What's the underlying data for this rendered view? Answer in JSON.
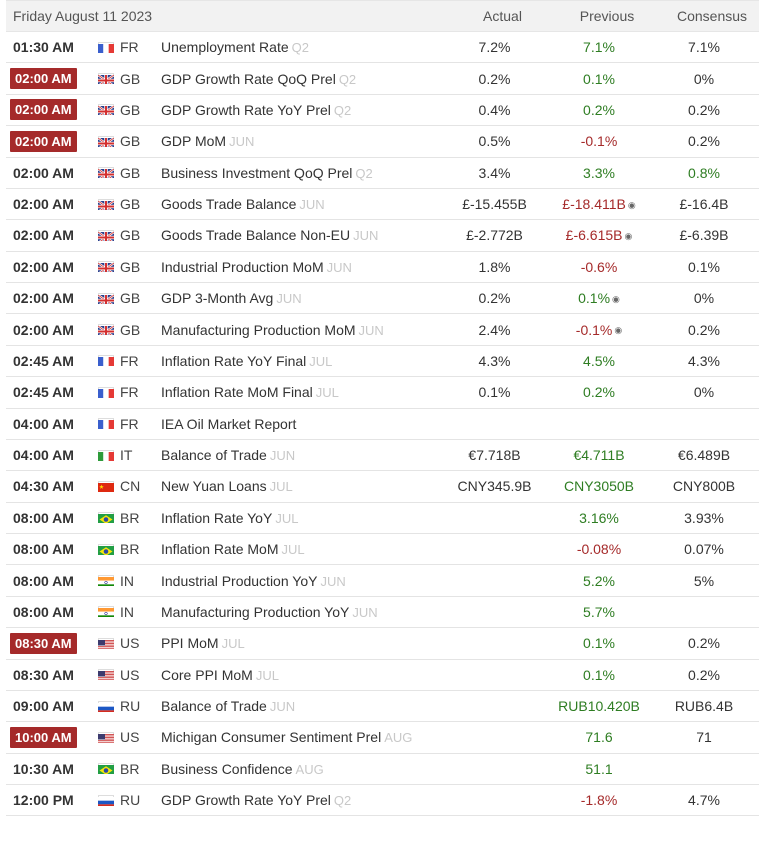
{
  "header": {
    "date": "Friday August 11 2023",
    "actual": "Actual",
    "previous": "Previous",
    "consensus": "Consensus"
  },
  "rows": [
    {
      "time": "01:30 AM",
      "time_highlight": false,
      "country": "FR",
      "flag": "fr",
      "event": "Unemployment Rate",
      "ref": "Q2",
      "actual": "7.2%",
      "previous": "7.1%",
      "previous_color": "pos",
      "previous_revised": false,
      "consensus": "7.1%",
      "consensus_color": "neu"
    },
    {
      "time": "02:00 AM",
      "time_highlight": true,
      "country": "GB",
      "flag": "gb",
      "event": "GDP Growth Rate QoQ Prel",
      "ref": "Q2",
      "actual": "0.2%",
      "previous": "0.1%",
      "previous_color": "pos",
      "previous_revised": false,
      "consensus": "0%",
      "consensus_color": "neu"
    },
    {
      "time": "02:00 AM",
      "time_highlight": true,
      "country": "GB",
      "flag": "gb",
      "event": "GDP Growth Rate YoY Prel",
      "ref": "Q2",
      "actual": "0.4%",
      "previous": "0.2%",
      "previous_color": "pos",
      "previous_revised": false,
      "consensus": "0.2%",
      "consensus_color": "neu"
    },
    {
      "time": "02:00 AM",
      "time_highlight": true,
      "country": "GB",
      "flag": "gb",
      "event": "GDP MoM",
      "ref": "JUN",
      "actual": "0.5%",
      "previous": "-0.1%",
      "previous_color": "neg",
      "previous_revised": false,
      "consensus": "0.2%",
      "consensus_color": "neu"
    },
    {
      "time": "02:00 AM",
      "time_highlight": false,
      "country": "GB",
      "flag": "gb",
      "event": "Business Investment QoQ Prel",
      "ref": "Q2",
      "actual": "3.4%",
      "previous": "3.3%",
      "previous_color": "pos",
      "previous_revised": false,
      "consensus": "0.8%",
      "consensus_color": "pos"
    },
    {
      "time": "02:00 AM",
      "time_highlight": false,
      "country": "GB",
      "flag": "gb",
      "event": "Goods Trade Balance",
      "ref": "JUN",
      "actual": "£-15.455B",
      "previous": "£-18.411B",
      "previous_color": "neg",
      "previous_revised": true,
      "consensus": "£-16.4B",
      "consensus_color": "neu"
    },
    {
      "time": "02:00 AM",
      "time_highlight": false,
      "country": "GB",
      "flag": "gb",
      "event": "Goods Trade Balance Non-EU",
      "ref": "JUN",
      "actual": "£-2.772B",
      "previous": "£-6.615B",
      "previous_color": "neg",
      "previous_revised": true,
      "consensus": "£-6.39B",
      "consensus_color": "neu"
    },
    {
      "time": "02:00 AM",
      "time_highlight": false,
      "country": "GB",
      "flag": "gb",
      "event": "Industrial Production MoM",
      "ref": "JUN",
      "actual": "1.8%",
      "previous": "-0.6%",
      "previous_color": "neg",
      "previous_revised": false,
      "consensus": "0.1%",
      "consensus_color": "neu"
    },
    {
      "time": "02:00 AM",
      "time_highlight": false,
      "country": "GB",
      "flag": "gb",
      "event": "GDP 3-Month Avg",
      "ref": "JUN",
      "actual": "0.2%",
      "previous": "0.1%",
      "previous_color": "pos",
      "previous_revised": true,
      "consensus": "0%",
      "consensus_color": "neu"
    },
    {
      "time": "02:00 AM",
      "time_highlight": false,
      "country": "GB",
      "flag": "gb",
      "event": "Manufacturing Production MoM",
      "ref": "JUN",
      "actual": "2.4%",
      "previous": "-0.1%",
      "previous_color": "neg",
      "previous_revised": true,
      "consensus": "0.2%",
      "consensus_color": "neu"
    },
    {
      "time": "02:45 AM",
      "time_highlight": false,
      "country": "FR",
      "flag": "fr",
      "event": "Inflation Rate YoY Final",
      "ref": "JUL",
      "actual": "4.3%",
      "previous": "4.5%",
      "previous_color": "pos",
      "previous_revised": false,
      "consensus": "4.3%",
      "consensus_color": "neu"
    },
    {
      "time": "02:45 AM",
      "time_highlight": false,
      "country": "FR",
      "flag": "fr",
      "event": "Inflation Rate MoM Final",
      "ref": "JUL",
      "actual": "0.1%",
      "previous": "0.2%",
      "previous_color": "pos",
      "previous_revised": false,
      "consensus": "0%",
      "consensus_color": "neu"
    },
    {
      "time": "04:00 AM",
      "time_highlight": false,
      "country": "FR",
      "flag": "fr",
      "event": "IEA Oil Market Report",
      "ref": "",
      "actual": "",
      "previous": "",
      "previous_color": "neu",
      "previous_revised": false,
      "consensus": "",
      "consensus_color": "neu"
    },
    {
      "time": "04:00 AM",
      "time_highlight": false,
      "country": "IT",
      "flag": "it",
      "event": "Balance of Trade",
      "ref": "JUN",
      "actual": "€7.718B",
      "previous": "€4.711B",
      "previous_color": "pos",
      "previous_revised": false,
      "consensus": "€6.489B",
      "consensus_color": "neu"
    },
    {
      "time": "04:30 AM",
      "time_highlight": false,
      "country": "CN",
      "flag": "cn",
      "event": "New Yuan Loans",
      "ref": "JUL",
      "actual": "CNY345.9B",
      "previous": "CNY3050B",
      "previous_color": "pos",
      "previous_revised": false,
      "consensus": "CNY800B",
      "consensus_color": "neu"
    },
    {
      "time": "08:00 AM",
      "time_highlight": false,
      "country": "BR",
      "flag": "br",
      "event": "Inflation Rate YoY",
      "ref": "JUL",
      "actual": "",
      "previous": "3.16%",
      "previous_color": "pos",
      "previous_revised": false,
      "consensus": "3.93%",
      "consensus_color": "neu"
    },
    {
      "time": "08:00 AM",
      "time_highlight": false,
      "country": "BR",
      "flag": "br",
      "event": "Inflation Rate MoM",
      "ref": "JUL",
      "actual": "",
      "previous": "-0.08%",
      "previous_color": "neg",
      "previous_revised": false,
      "consensus": "0.07%",
      "consensus_color": "neu"
    },
    {
      "time": "08:00 AM",
      "time_highlight": false,
      "country": "IN",
      "flag": "in",
      "event": "Industrial Production YoY",
      "ref": "JUN",
      "actual": "",
      "previous": "5.2%",
      "previous_color": "pos",
      "previous_revised": false,
      "consensus": "5%",
      "consensus_color": "neu"
    },
    {
      "time": "08:00 AM",
      "time_highlight": false,
      "country": "IN",
      "flag": "in",
      "event": "Manufacturing Production YoY",
      "ref": "JUN",
      "actual": "",
      "previous": "5.7%",
      "previous_color": "pos",
      "previous_revised": false,
      "consensus": "",
      "consensus_color": "neu"
    },
    {
      "time": "08:30 AM",
      "time_highlight": true,
      "country": "US",
      "flag": "us",
      "event": "PPI MoM",
      "ref": "JUL",
      "actual": "",
      "previous": "0.1%",
      "previous_color": "pos",
      "previous_revised": false,
      "consensus": "0.2%",
      "consensus_color": "neu"
    },
    {
      "time": "08:30 AM",
      "time_highlight": false,
      "country": "US",
      "flag": "us",
      "event": "Core PPI MoM",
      "ref": "JUL",
      "actual": "",
      "previous": "0.1%",
      "previous_color": "pos",
      "previous_revised": false,
      "consensus": "0.2%",
      "consensus_color": "neu"
    },
    {
      "time": "09:00 AM",
      "time_highlight": false,
      "country": "RU",
      "flag": "ru",
      "event": "Balance of Trade",
      "ref": "JUN",
      "actual": "",
      "previous": "RUB10.420B",
      "previous_color": "pos",
      "previous_revised": false,
      "consensus": "RUB6.4B",
      "consensus_color": "neu"
    },
    {
      "time": "10:00 AM",
      "time_highlight": true,
      "country": "US",
      "flag": "us",
      "event": "Michigan Consumer Sentiment Prel",
      "ref": "AUG",
      "actual": "",
      "previous": "71.6",
      "previous_color": "pos",
      "previous_revised": false,
      "consensus": "71",
      "consensus_color": "neu"
    },
    {
      "time": "10:30 AM",
      "time_highlight": false,
      "country": "BR",
      "flag": "br",
      "event": "Business Confidence",
      "ref": "AUG",
      "actual": "",
      "previous": "51.1",
      "previous_color": "pos",
      "previous_revised": false,
      "consensus": "",
      "consensus_color": "neu"
    },
    {
      "time": "12:00 PM",
      "time_highlight": false,
      "country": "RU",
      "flag": "ru",
      "event": "GDP Growth Rate YoY Prel",
      "ref": "Q2",
      "actual": "",
      "previous": "-1.8%",
      "previous_color": "neg",
      "previous_revised": false,
      "consensus": "4.7%",
      "consensus_color": "neu"
    }
  ],
  "revised_icon": "info-circle-icon"
}
